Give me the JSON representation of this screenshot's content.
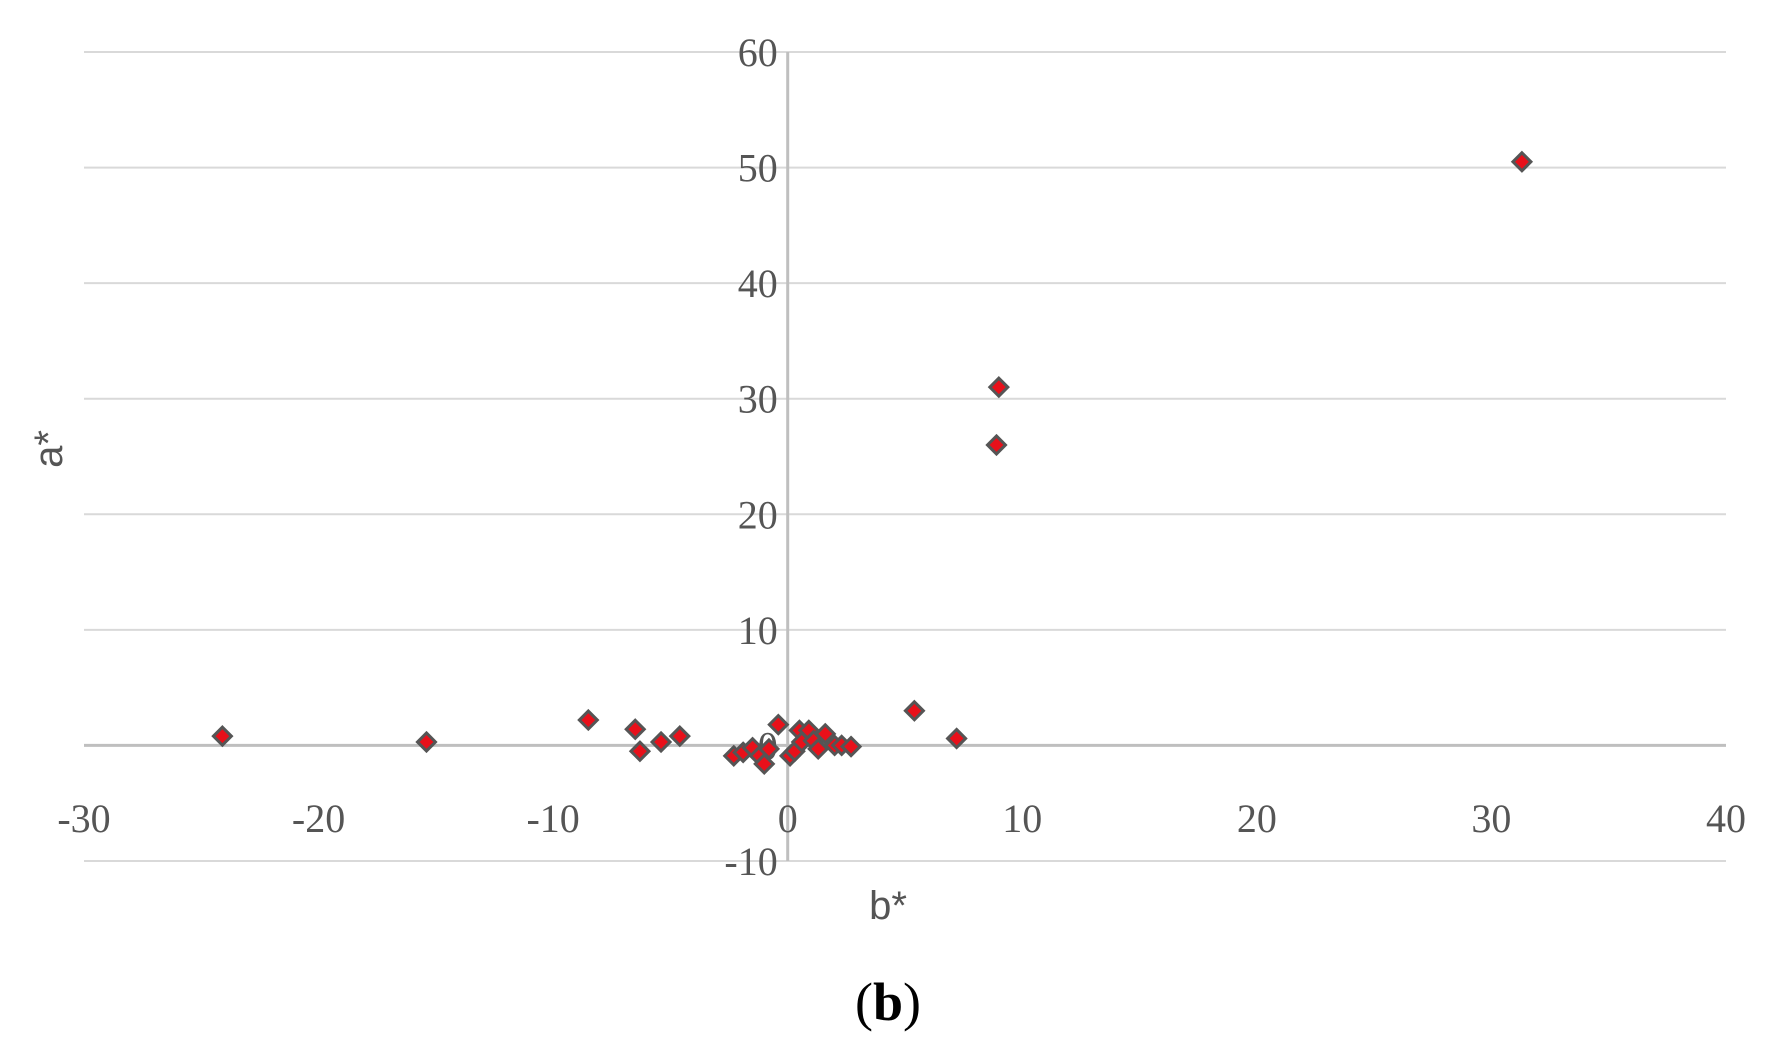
{
  "chart_data": {
    "type": "scatter",
    "xlabel": "b*",
    "ylabel": "a*",
    "xlim": [
      -30,
      40
    ],
    "ylim": [
      -10,
      60
    ],
    "x_ticks": [
      -30,
      -20,
      -10,
      0,
      10,
      20,
      30,
      40
    ],
    "y_ticks": [
      -10,
      0,
      10,
      20,
      30,
      40,
      50,
      60
    ],
    "grid": true,
    "legend": "none",
    "marker": "diamond",
    "marker_fill": "#e8101a",
    "marker_edge": "#555555",
    "caption": {
      "open": "(",
      "letter": "b",
      "close": ")"
    },
    "points": [
      [
        -24.1,
        0.8
      ],
      [
        -15.4,
        0.3
      ],
      [
        -8.5,
        2.2
      ],
      [
        -6.5,
        1.4
      ],
      [
        -6.3,
        -0.5
      ],
      [
        -5.4,
        0.3
      ],
      [
        -4.6,
        0.8
      ],
      [
        -2.3,
        -0.9
      ],
      [
        -1.9,
        -0.6
      ],
      [
        -1.5,
        -0.2
      ],
      [
        -1.2,
        -0.9
      ],
      [
        -1.0,
        -1.6
      ],
      [
        -0.8,
        -0.3
      ],
      [
        -0.4,
        1.8
      ],
      [
        0.1,
        -0.9
      ],
      [
        0.3,
        -0.5
      ],
      [
        0.5,
        1.3
      ],
      [
        0.6,
        0.3
      ],
      [
        0.9,
        1.3
      ],
      [
        1.1,
        0.4
      ],
      [
        1.3,
        -0.3
      ],
      [
        1.6,
        1.0
      ],
      [
        2.0,
        0.0
      ],
      [
        2.3,
        0.0
      ],
      [
        2.7,
        -0.1
      ],
      [
        5.4,
        3.0
      ],
      [
        7.2,
        0.6
      ],
      [
        8.9,
        26.0
      ],
      [
        9.0,
        31.0
      ],
      [
        31.3,
        50.5
      ]
    ]
  }
}
